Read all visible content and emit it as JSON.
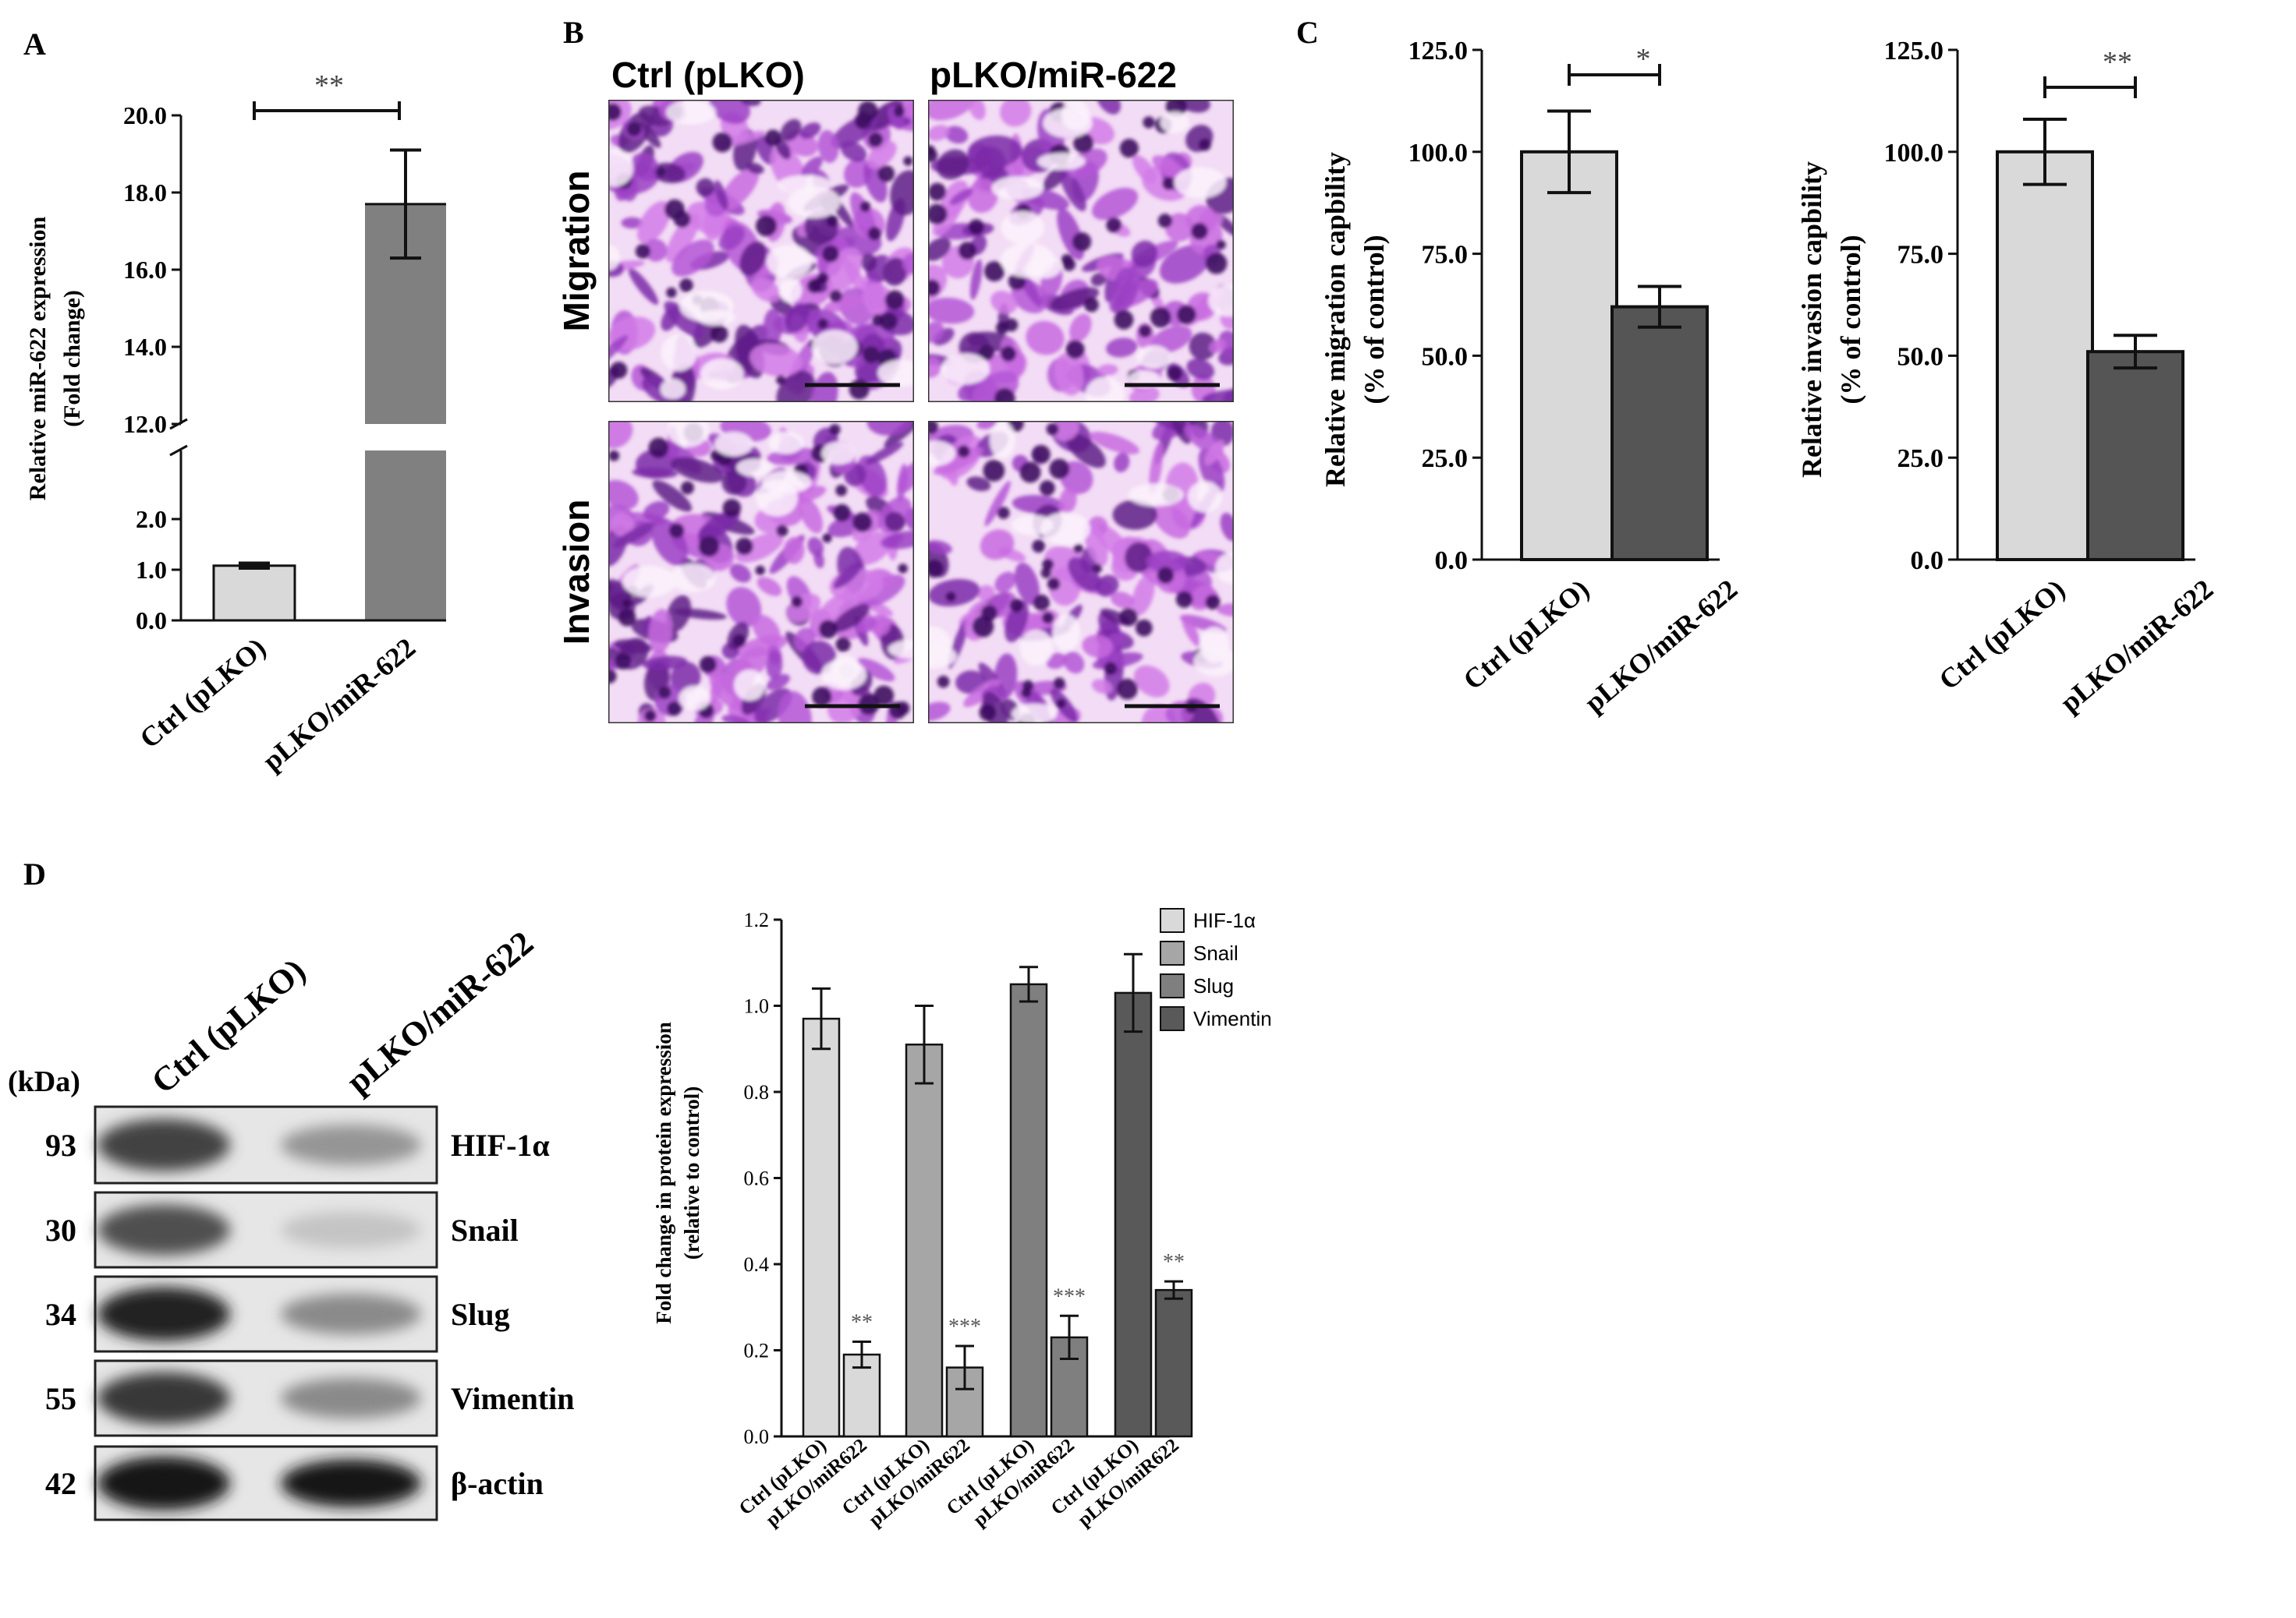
{
  "panels": {
    "A": {
      "letter": "A",
      "ylabel_line1": "Relative miR-622 expression",
      "ylabel_line2": "(Fold change)",
      "yticks_upper": [
        "12.0",
        "14.0",
        "16.0",
        "18.0",
        "20.0"
      ],
      "yticks_lower": [
        "0.0",
        "1.0",
        "2.0"
      ],
      "significance": "**",
      "categories": [
        "Ctrl (pLKO)",
        "pLKO/miR-622"
      ]
    },
    "B": {
      "letter": "B",
      "columns": [
        "Ctrl (pLKO)",
        "pLKO/miR-622"
      ],
      "rows": [
        "Migration",
        "Invasion"
      ]
    },
    "C": {
      "letter": "C",
      "left": {
        "ylabel_line1": "Relative migration capbility",
        "ylabel_line2": "(% of control)",
        "significance": "*",
        "categories": [
          "Ctrl (pLKO)",
          "pLKO/miR-622"
        ]
      },
      "right": {
        "ylabel_line1": "Relative invasion capbility",
        "ylabel_line2": "(% of control)",
        "significance": "**",
        "categories": [
          "Ctrl (pLKO)",
          "pLKO/miR-622"
        ]
      },
      "yticks": [
        "0.0",
        "25.0",
        "50.0",
        "75.0",
        "100.0",
        "125.0"
      ]
    },
    "D": {
      "letter": "D",
      "blot": {
        "kda_label": "(kDa)",
        "lanes": [
          "Ctrl (pLKO)",
          "pLKO/miR-622"
        ],
        "bands": [
          {
            "kda": "93",
            "name": "HIF-1α"
          },
          {
            "kda": "30",
            "name": "Snail"
          },
          {
            "kda": "34",
            "name": "Slug"
          },
          {
            "kda": "55",
            "name": "Vimentin"
          },
          {
            "kda": "42",
            "name": "β-actin"
          }
        ]
      },
      "chart": {
        "ylabel_line1": "Fold change in protein expression",
        "ylabel_line2": "(relative to control)",
        "yticks": [
          "0.0",
          "0.2",
          "0.4",
          "0.6",
          "0.8",
          "1.0",
          "1.2"
        ],
        "xlabels": [
          "Ctrl (pLKO)",
          "pLKO/miR622"
        ]
      }
    }
  },
  "chart_data": [
    {
      "type": "bar",
      "panel": "A",
      "categories": [
        "Ctrl (pLKO)",
        "pLKO/miR-622"
      ],
      "values": [
        1.08,
        17.7
      ],
      "errors": [
        0.05,
        1.4
      ],
      "ylabel": "Relative miR-622 expression (Fold change)",
      "ylim": [
        0,
        20
      ],
      "broken_axis": [
        2.5,
        12.0
      ],
      "colors": [
        "#d9d9d9",
        "#808080"
      ],
      "annotations": [
        "**"
      ]
    },
    {
      "type": "bar",
      "panel": "C-left",
      "categories": [
        "Ctrl (pLKO)",
        "pLKO/miR-622"
      ],
      "values": [
        100.0,
        62.0
      ],
      "errors": [
        10.0,
        5.0
      ],
      "ylabel": "Relative migration capbility (% of control)",
      "ylim": [
        0,
        125
      ],
      "colors": [
        "#d9d9d9",
        "#555555"
      ],
      "annotations": [
        "*"
      ]
    },
    {
      "type": "bar",
      "panel": "C-right",
      "categories": [
        "Ctrl (pLKO)",
        "pLKO/miR-622"
      ],
      "values": [
        100.0,
        51.0
      ],
      "errors": [
        8.0,
        4.0
      ],
      "ylabel": "Relative invasion capbility (% of control)",
      "ylim": [
        0,
        125
      ],
      "colors": [
        "#d9d9d9",
        "#555555"
      ],
      "annotations": [
        "**"
      ]
    },
    {
      "type": "bar",
      "panel": "D",
      "ylabel": "Fold change in protein expression (relative to control)",
      "ylim": [
        0,
        1.2
      ],
      "series": [
        {
          "name": "HIF-1α",
          "color": "#d9d9d9",
          "values": [
            0.97,
            0.19
          ],
          "errors": [
            0.07,
            0.03
          ],
          "sig": "**"
        },
        {
          "name": "Snail",
          "color": "#a6a6a6",
          "values": [
            0.91,
            0.16
          ],
          "errors": [
            0.09,
            0.05
          ],
          "sig": "***"
        },
        {
          "name": "Slug",
          "color": "#7f7f7f",
          "values": [
            1.05,
            0.23
          ],
          "errors": [
            0.04,
            0.05
          ],
          "sig": "***"
        },
        {
          "name": "Vimentin",
          "color": "#595959",
          "values": [
            1.03,
            0.34
          ],
          "errors": [
            0.09,
            0.02
          ],
          "sig": "**"
        }
      ],
      "categories": [
        "Ctrl (pLKO)",
        "pLKO/miR622"
      ]
    }
  ]
}
